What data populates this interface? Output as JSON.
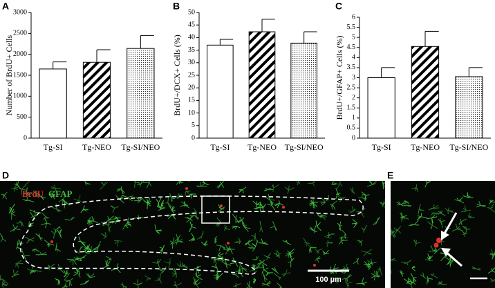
{
  "chart_data": [
    {
      "type": "bar",
      "label": "A",
      "ylabel": "Number of BrdU+ Cells",
      "categories": [
        "Tg-SI",
        "Tg-NEO",
        "Tg-SI/NEO"
      ],
      "values": [
        1650,
        1810,
        2140
      ],
      "errors": [
        170,
        300,
        310
      ],
      "color": "#ffffff",
      "fills": [
        "solid",
        "hatch",
        "dots"
      ],
      "ylim": [
        0,
        3000
      ],
      "yticks": [
        0,
        500,
        1000,
        1500,
        2000,
        2500,
        3000
      ]
    },
    {
      "type": "bar",
      "label": "B",
      "ylabel": "BrdU+/DCX+ Cells (%)",
      "categories": [
        "Tg-SI",
        "Tg-NEO",
        "Tg-SI/NEO"
      ],
      "values": [
        37,
        42.3,
        37.8
      ],
      "errors": [
        2.3,
        5,
        4.5
      ],
      "color": "#ffffff",
      "fills": [
        "solid",
        "hatch",
        "dots"
      ],
      "ylim": [
        0,
        50
      ],
      "yticks": [
        0,
        5,
        10,
        15,
        20,
        25,
        30,
        35,
        40,
        45,
        50
      ]
    },
    {
      "type": "bar",
      "label": "C",
      "ylabel": "BrdU+/GFAP+ Cells (%)",
      "categories": [
        "Tg-SI",
        "Tg-NEO",
        "Tg-SI/NEO"
      ],
      "values": [
        3,
        4.55,
        3.05
      ],
      "errors": [
        0.5,
        0.75,
        0.45
      ],
      "color": "#ffffff",
      "fills": [
        "solid",
        "hatch",
        "dots"
      ],
      "ylim": [
        0,
        6
      ],
      "yticks": [
        0,
        0.5,
        1,
        1.5,
        2,
        2.5,
        3,
        3.5,
        4,
        4.5,
        5,
        5.5,
        6
      ]
    }
  ],
  "images": [
    {
      "label": "D",
      "stains": [
        {
          "name": "BrdU",
          "color": "#e03030"
        },
        {
          "name": "GFAP",
          "color": "#40c040"
        }
      ],
      "scale_bar": "100 µm"
    },
    {
      "label": "E"
    }
  ]
}
